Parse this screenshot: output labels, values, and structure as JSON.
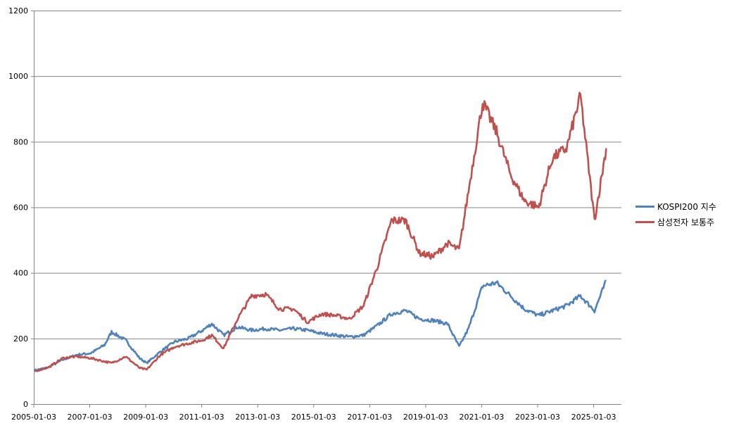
{
  "chart_data": {
    "type": "line",
    "xlabel": "",
    "ylabel": "",
    "ylim": [
      0,
      1200
    ],
    "yticks": [
      0,
      200,
      400,
      600,
      800,
      1000,
      1200
    ],
    "xticks": [
      "2005-01-03",
      "2007-01-03",
      "2009-01-03",
      "2011-01-03",
      "2013-01-03",
      "2015-01-03",
      "2017-01-03",
      "2019-01-03",
      "2021-01-03",
      "2023-01-03",
      "2025-01-03"
    ],
    "grid": true,
    "legend_position": "right",
    "x": [
      "2005-01",
      "2005-07",
      "2006-01",
      "2006-07",
      "2007-01",
      "2007-07",
      "2007-10",
      "2008-04",
      "2008-10",
      "2009-01",
      "2009-07",
      "2010-01",
      "2010-07",
      "2011-01",
      "2011-05",
      "2011-10",
      "2012-04",
      "2012-10",
      "2013-04",
      "2013-10",
      "2014-04",
      "2014-10",
      "2015-04",
      "2015-10",
      "2016-04",
      "2016-10",
      "2017-04",
      "2017-10",
      "2018-04",
      "2018-10",
      "2019-04",
      "2019-10",
      "2020-03",
      "2020-07",
      "2021-01",
      "2021-07",
      "2022-01",
      "2022-07",
      "2023-01",
      "2023-07",
      "2024-01",
      "2024-07",
      "2025-01",
      "2025-06"
    ],
    "series": [
      {
        "name": "KOSPI200 지수",
        "color": "#4f81bd",
        "values": [
          103,
          112,
          135,
          150,
          155,
          180,
          220,
          195,
          140,
          125,
          160,
          190,
          200,
          225,
          245,
          210,
          235,
          225,
          230,
          225,
          230,
          225,
          215,
          210,
          205,
          210,
          240,
          275,
          285,
          260,
          255,
          245,
          175,
          230,
          360,
          370,
          330,
          290,
          270,
          285,
          300,
          330,
          285,
          375
        ]
      },
      {
        "name": "삼성전자 보통주",
        "color": "#c0504d",
        "values": [
          100,
          112,
          140,
          145,
          140,
          130,
          125,
          145,
          110,
          105,
          150,
          175,
          185,
          195,
          210,
          170,
          260,
          330,
          335,
          290,
          290,
          250,
          275,
          270,
          260,
          300,
          420,
          560,
          560,
          460,
          450,
          490,
          470,
          650,
          920,
          830,
          700,
          620,
          600,
          750,
          780,
          940,
          560,
          780
        ]
      }
    ]
  }
}
